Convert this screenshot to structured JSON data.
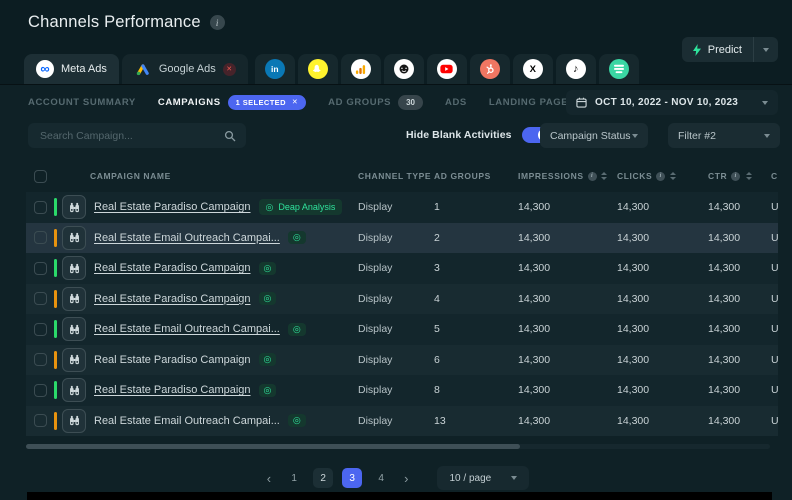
{
  "colors": {
    "accent_blue": "#4c66f0",
    "accent_green": "#2fe39c",
    "bar_green": "#2bd96a",
    "bar_orange": "#e8930f"
  },
  "icons": {
    "info": "i",
    "close": "✕",
    "target": "◎",
    "meta_infinity": "∞",
    "linkedin_logo": "in",
    "x_logo": "X",
    "music_note": "♪"
  },
  "header": {
    "title": "Channels Performance",
    "predict": {
      "label": "Predict"
    }
  },
  "channel_tabs": {
    "meta": {
      "label": "Meta Ads"
    },
    "google": {
      "label": "Google Ads"
    },
    "icon_tabs": [
      "linkedin",
      "snapchat",
      "google-analytics",
      "mailchimp",
      "youtube",
      "hubspot",
      "x",
      "tiktok",
      "drip"
    ]
  },
  "subnav": {
    "items": [
      {
        "label": "ACCOUNT SUMMARY"
      },
      {
        "label": "CAMPAIGNS",
        "badge": "1 SELECTED"
      },
      {
        "label": "AD GROUPS",
        "badge": "30"
      },
      {
        "label": "ADS"
      },
      {
        "label": "LANDING PAGES"
      }
    ]
  },
  "date_range": {
    "label": "OCT 10, 2022 - NOV 10, 2023"
  },
  "filters": {
    "search_placeholder": "Search Campaign...",
    "toggle_label": "Hide Blank Activities",
    "toggle_on": true,
    "campaign_status_label": "Campaign Status",
    "filter2_label": "Filter #2"
  },
  "table": {
    "columns": {
      "name": "CAMPAIGN NAME",
      "channel_type": "CHANNEL TYPE",
      "ad_groups": "AD GROUPS",
      "impressions": "IMPRESSIONS",
      "clicks": "CLICKS",
      "ctr": "CTR",
      "cost_truncated": "C"
    },
    "rows": [
      {
        "name": "Real Estate Paradiso Campaign",
        "badge_label": "Deap Analysis",
        "bar": "green",
        "underline": true,
        "selected": false,
        "channel_type": "Display",
        "ad_groups": "1",
        "impressions": "14,300",
        "clicks": "14,300",
        "ctr": "14,300",
        "cost": "U"
      },
      {
        "name": "Real Estate Email Outreach Campai...",
        "badge_label": "",
        "bar": "orange",
        "underline": true,
        "selected": true,
        "channel_type": "Display",
        "ad_groups": "2",
        "impressions": "14,300",
        "clicks": "14,300",
        "ctr": "14,300",
        "cost": "U"
      },
      {
        "name": "Real Estate Paradiso Campaign",
        "badge_label": "",
        "bar": "green",
        "underline": true,
        "selected": false,
        "channel_type": "Display",
        "ad_groups": "3",
        "impressions": "14,300",
        "clicks": "14,300",
        "ctr": "14,300",
        "cost": "U"
      },
      {
        "name": "Real Estate Paradiso Campaign",
        "badge_label": "",
        "bar": "orange",
        "underline": true,
        "selected": false,
        "channel_type": "Display",
        "ad_groups": "4",
        "impressions": "14,300",
        "clicks": "14,300",
        "ctr": "14,300",
        "cost": "U"
      },
      {
        "name": "Real Estate Email Outreach Campai...",
        "badge_label": "",
        "bar": "green",
        "underline": true,
        "selected": false,
        "channel_type": "Display",
        "ad_groups": "5",
        "impressions": "14,300",
        "clicks": "14,300",
        "ctr": "14,300",
        "cost": "U"
      },
      {
        "name": "Real Estate Paradiso Campaign",
        "badge_label": "",
        "bar": "orange",
        "underline": false,
        "selected": false,
        "channel_type": "Display",
        "ad_groups": "6",
        "impressions": "14,300",
        "clicks": "14,300",
        "ctr": "14,300",
        "cost": "U"
      },
      {
        "name": "Real Estate Paradiso Campaign",
        "badge_label": "",
        "bar": "green",
        "underline": true,
        "selected": false,
        "channel_type": "Display",
        "ad_groups": "8",
        "impressions": "14,300",
        "clicks": "14,300",
        "ctr": "14,300",
        "cost": "U"
      },
      {
        "name": "Real Estate Email Outreach Campai...",
        "badge_label": "",
        "bar": "orange",
        "underline": false,
        "selected": false,
        "channel_type": "Display",
        "ad_groups": "13",
        "impressions": "14,300",
        "clicks": "14,300",
        "ctr": "14,300",
        "cost": "U"
      }
    ]
  },
  "pagination": {
    "prev": "‹",
    "next": "›",
    "pages": [
      "1",
      "2",
      "3",
      "4"
    ],
    "current_page": "3",
    "boxed_page": "2",
    "page_size": "10 / page"
  }
}
